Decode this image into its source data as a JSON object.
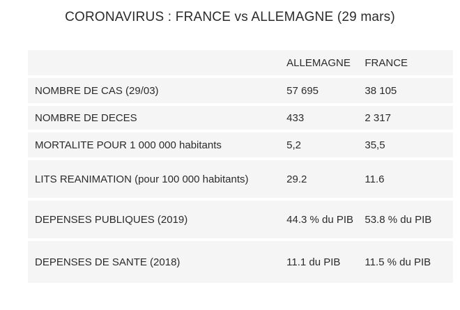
{
  "title": "CORONAVIRUS : FRANCE vs ALLEMAGNE (29 mars)",
  "table": {
    "headers": [
      "",
      "ALLEMAGNE",
      "FRANCE"
    ],
    "rows": [
      {
        "label": "NOMBRE DE CAS (29/03)",
        "allemagne": "57 695",
        "france": "38 105"
      },
      {
        "label": "NOMBRE DE DECES",
        "allemagne": "433",
        "france": "2 317"
      },
      {
        "label": "MORTALITE POUR 1 000 000 habitants",
        "allemagne": "5,2",
        "france": "35,5"
      },
      {
        "label": "LITS REANIMATION (pour 100 000 habitants)",
        "allemagne": "29.2",
        "france": "11.6"
      },
      {
        "label": "DEPENSES PUBLIQUES (2019)",
        "allemagne": "44.3 % du PIB",
        "france": "53.8 % du PIB"
      },
      {
        "label": "DEPENSES DE SANTE (2018)",
        "allemagne": "11.1 du PIB",
        "france": "11.5 % du PIB"
      }
    ]
  }
}
